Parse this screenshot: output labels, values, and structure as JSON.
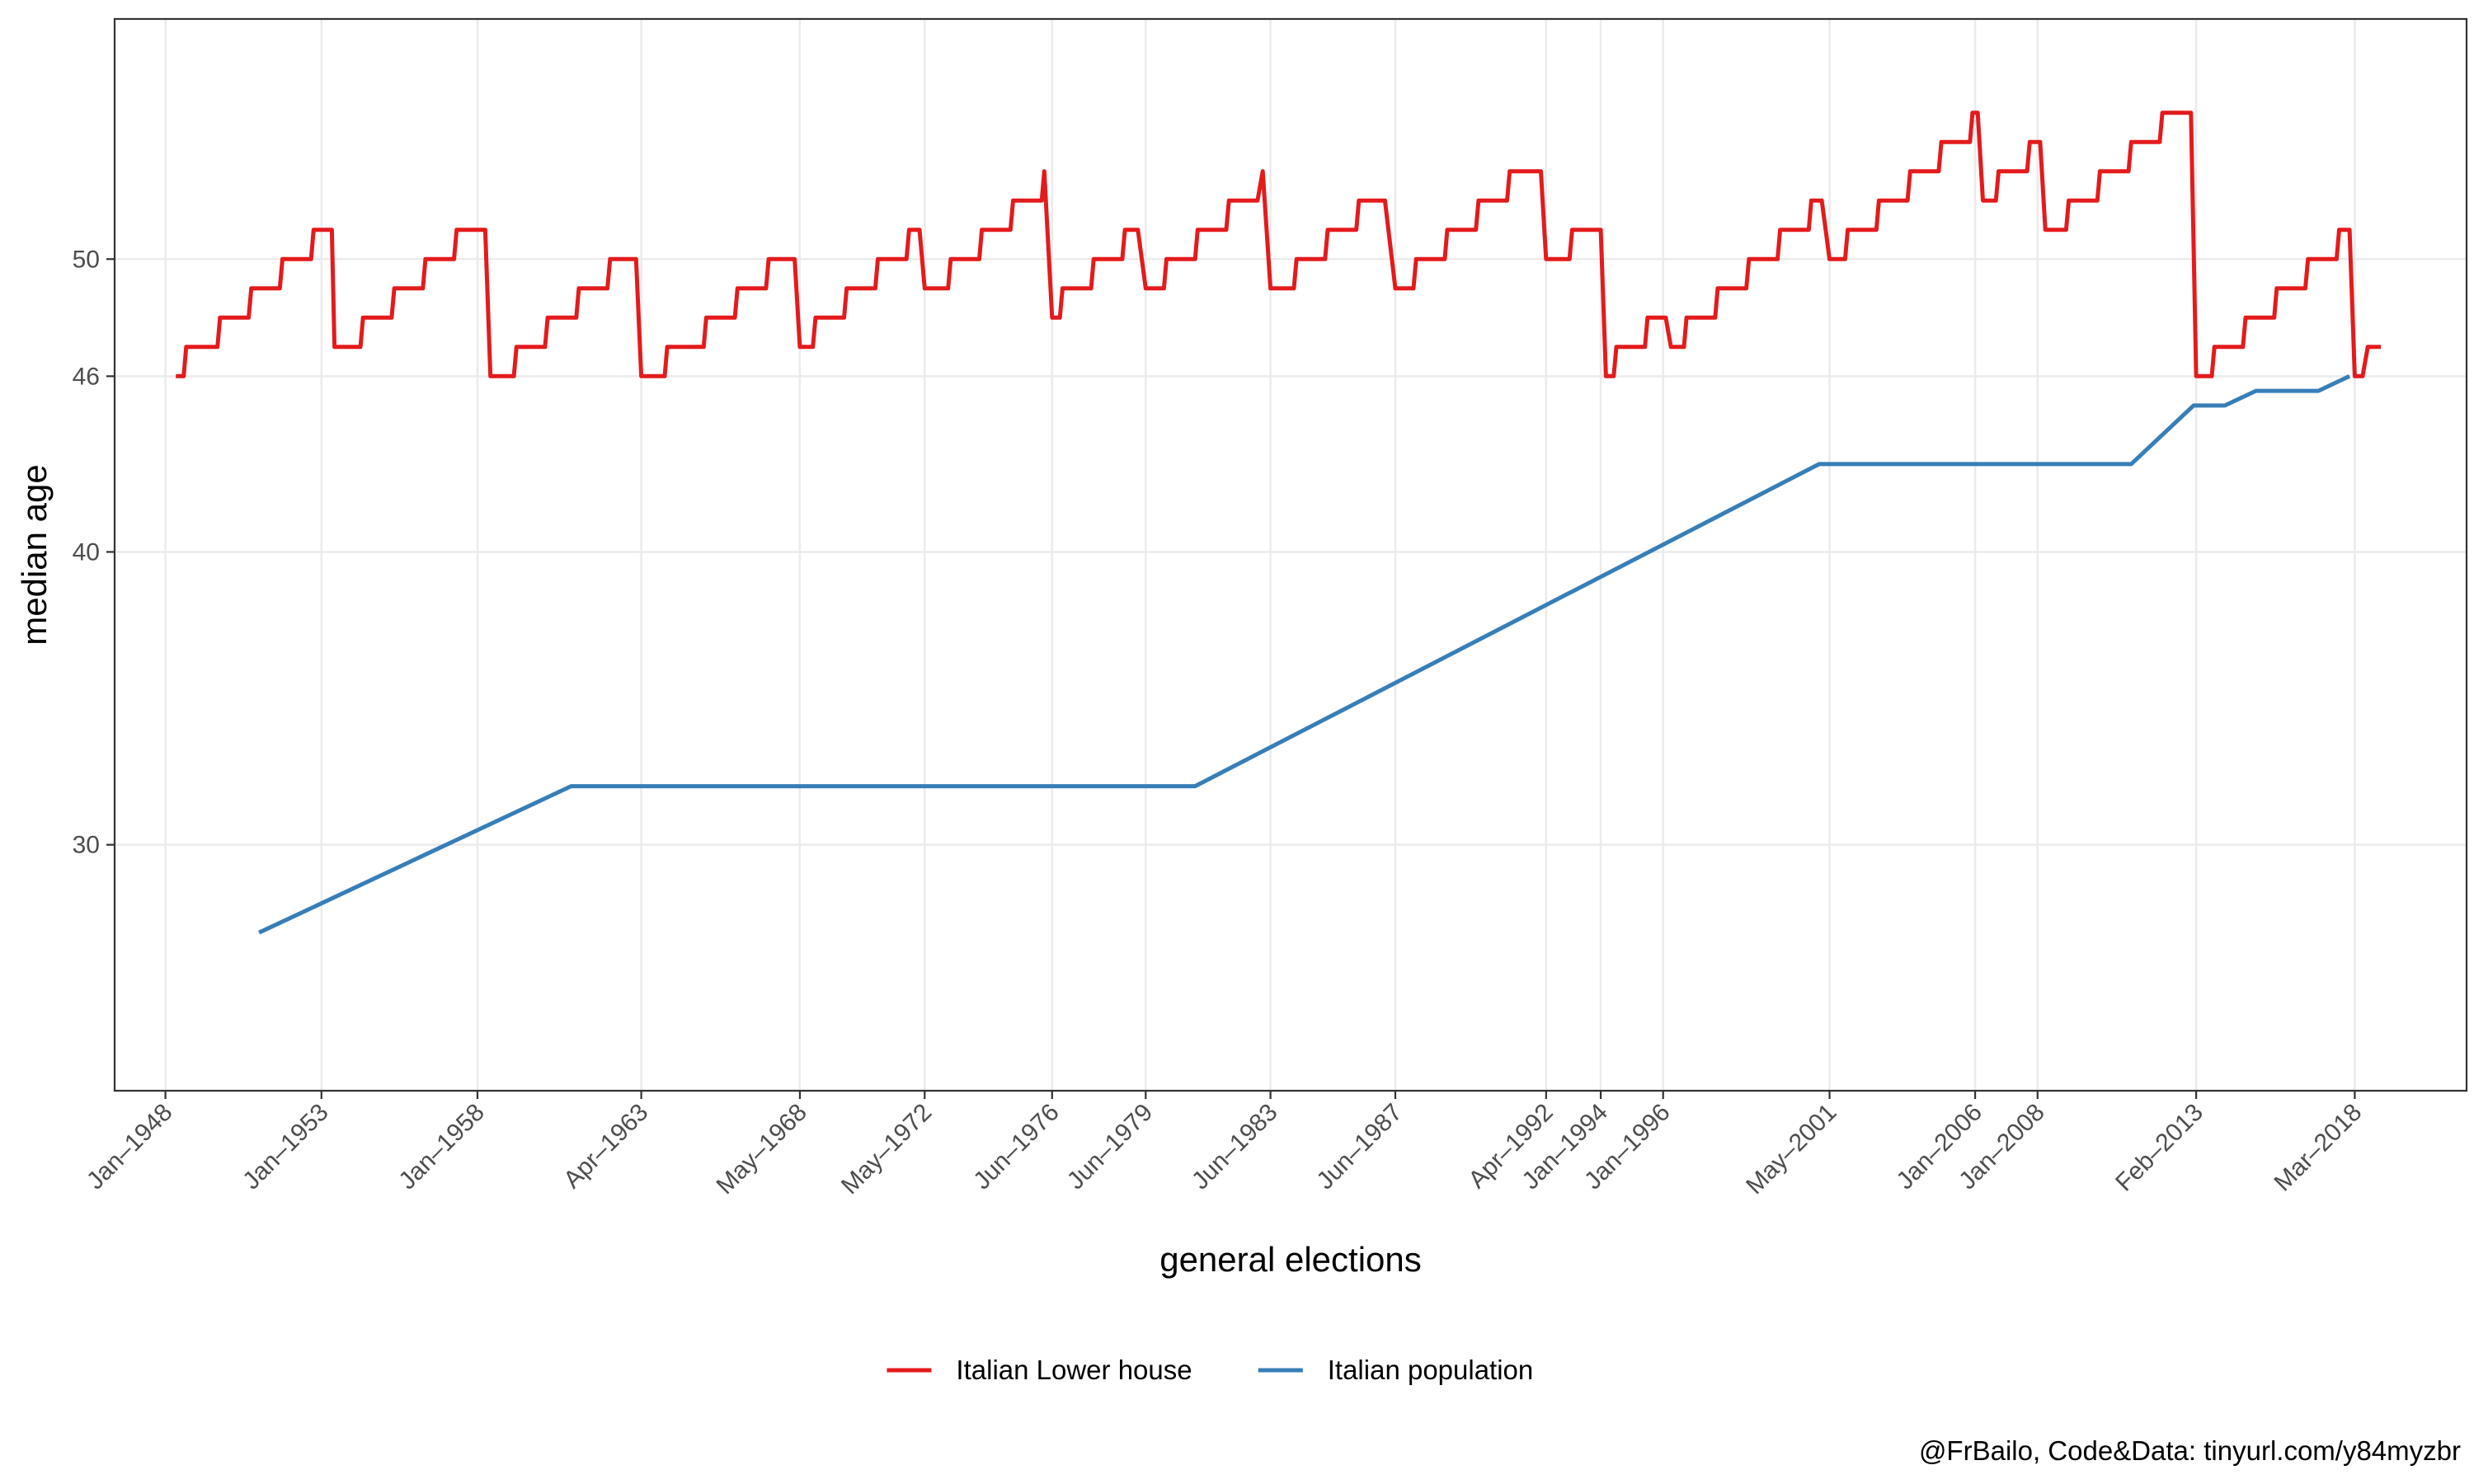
{
  "chart_data": {
    "type": "line",
    "xlabel": "general elections",
    "ylabel": "median age",
    "caption": "@FrBailo, Code&Data: tinyurl.com/y84myzbr",
    "legend_position": "bottom",
    "grid": true,
    "x_scale": "date",
    "xlim": [
      "1946-05-15",
      "2021-10-01"
    ],
    "ylim": [
      21.6,
      58.2
    ],
    "y_ticks": [
      30,
      40,
      46,
      50
    ],
    "x_ticks": [
      {
        "date": "1948-01-01",
        "label": "Jan–1948"
      },
      {
        "date": "1953-01-01",
        "label": "Jan–1953"
      },
      {
        "date": "1958-01-01",
        "label": "Jan–1958"
      },
      {
        "date": "1963-04-01",
        "label": "Apr–1963"
      },
      {
        "date": "1968-05-01",
        "label": "May–1968"
      },
      {
        "date": "1972-05-01",
        "label": "May–1972"
      },
      {
        "date": "1976-06-01",
        "label": "Jun–1976"
      },
      {
        "date": "1979-06-01",
        "label": "Jun–1979"
      },
      {
        "date": "1983-06-01",
        "label": "Jun–1983"
      },
      {
        "date": "1987-06-01",
        "label": "Jun–1987"
      },
      {
        "date": "1992-04-01",
        "label": "Apr–1992"
      },
      {
        "date": "1994-01-01",
        "label": "Jan–1994"
      },
      {
        "date": "1996-01-01",
        "label": "Jan–1996"
      },
      {
        "date": "2001-05-01",
        "label": "May–2001"
      },
      {
        "date": "2006-01-01",
        "label": "Jan–2006"
      },
      {
        "date": "2008-01-01",
        "label": "Jan–2008"
      },
      {
        "date": "2013-02-01",
        "label": "Feb–2013"
      },
      {
        "date": "2018-03-01",
        "label": "Mar–2018"
      }
    ],
    "series": [
      {
        "name": "Italian Lower house",
        "color": "#e41a1c",
        "points": [
          [
            "1948-05-01",
            46
          ],
          [
            "1948-08-01",
            46
          ],
          [
            "1948-09-01",
            47
          ],
          [
            "1949-09-01",
            47
          ],
          [
            "1949-10-01",
            48
          ],
          [
            "1950-09-01",
            48
          ],
          [
            "1950-10-01",
            49
          ],
          [
            "1951-09-01",
            49
          ],
          [
            "1951-10-01",
            50
          ],
          [
            "1952-09-01",
            50
          ],
          [
            "1952-10-01",
            51
          ],
          [
            "1953-05-01",
            51
          ],
          [
            "1953-06-01",
            47
          ],
          [
            "1954-04-01",
            47
          ],
          [
            "1954-05-01",
            48
          ],
          [
            "1955-04-01",
            48
          ],
          [
            "1955-05-01",
            49
          ],
          [
            "1956-04-01",
            49
          ],
          [
            "1956-05-01",
            50
          ],
          [
            "1957-04-01",
            50
          ],
          [
            "1957-05-01",
            51
          ],
          [
            "1958-04-01",
            51
          ],
          [
            "1958-06-01",
            46
          ],
          [
            "1959-03-01",
            46
          ],
          [
            "1959-04-01",
            47
          ],
          [
            "1960-03-01",
            47
          ],
          [
            "1960-04-01",
            48
          ],
          [
            "1961-03-01",
            48
          ],
          [
            "1961-04-01",
            49
          ],
          [
            "1962-03-01",
            49
          ],
          [
            "1962-04-01",
            50
          ],
          [
            "1963-02-01",
            50
          ],
          [
            "1963-04-01",
            46
          ],
          [
            "1964-01-01",
            46
          ],
          [
            "1964-02-01",
            47
          ],
          [
            "1965-04-01",
            47
          ],
          [
            "1965-05-01",
            48
          ],
          [
            "1966-04-01",
            48
          ],
          [
            "1966-05-01",
            49
          ],
          [
            "1967-04-01",
            49
          ],
          [
            "1967-05-01",
            50
          ],
          [
            "1968-03-01",
            50
          ],
          [
            "1968-05-01",
            47
          ],
          [
            "1968-10-01",
            47
          ],
          [
            "1968-11-01",
            48
          ],
          [
            "1969-10-01",
            48
          ],
          [
            "1969-11-01",
            49
          ],
          [
            "1970-10-01",
            49
          ],
          [
            "1970-11-01",
            50
          ],
          [
            "1971-10-01",
            50
          ],
          [
            "1971-11-01",
            51
          ],
          [
            "1972-03-01",
            51
          ],
          [
            "1972-05-01",
            49
          ],
          [
            "1973-02-01",
            49
          ],
          [
            "1973-03-01",
            50
          ],
          [
            "1974-02-01",
            50
          ],
          [
            "1974-03-01",
            51
          ],
          [
            "1975-02-01",
            51
          ],
          [
            "1975-03-01",
            52
          ],
          [
            "1976-02-01",
            52
          ],
          [
            "1976-03-01",
            53
          ],
          [
            "1976-06-01",
            48
          ],
          [
            "1976-09-01",
            48
          ],
          [
            "1976-10-01",
            49
          ],
          [
            "1977-09-01",
            49
          ],
          [
            "1977-10-01",
            50
          ],
          [
            "1978-09-01",
            50
          ],
          [
            "1978-10-01",
            51
          ],
          [
            "1979-03-01",
            51
          ],
          [
            "1979-06-01",
            49
          ],
          [
            "1980-01-01",
            49
          ],
          [
            "1980-02-01",
            50
          ],
          [
            "1981-01-01",
            50
          ],
          [
            "1981-02-01",
            51
          ],
          [
            "1982-01-01",
            51
          ],
          [
            "1982-02-01",
            52
          ],
          [
            "1983-01-01",
            52
          ],
          [
            "1983-03-01",
            53
          ],
          [
            "1983-06-01",
            49
          ],
          [
            "1984-03-01",
            49
          ],
          [
            "1984-04-01",
            50
          ],
          [
            "1985-03-01",
            50
          ],
          [
            "1985-04-01",
            51
          ],
          [
            "1986-03-01",
            51
          ],
          [
            "1986-04-01",
            52
          ],
          [
            "1987-02-01",
            52
          ],
          [
            "1987-06-01",
            49
          ],
          [
            "1988-01-01",
            49
          ],
          [
            "1988-02-01",
            50
          ],
          [
            "1989-01-01",
            50
          ],
          [
            "1989-02-01",
            51
          ],
          [
            "1990-01-01",
            51
          ],
          [
            "1990-02-01",
            52
          ],
          [
            "1991-01-01",
            52
          ],
          [
            "1991-02-01",
            53
          ],
          [
            "1992-02-01",
            53
          ],
          [
            "1992-04-01",
            50
          ],
          [
            "1993-01-01",
            50
          ],
          [
            "1993-02-01",
            51
          ],
          [
            "1994-01-01",
            51
          ],
          [
            "1994-03-01",
            46
          ],
          [
            "1994-06-01",
            46
          ],
          [
            "1994-07-01",
            47
          ],
          [
            "1995-06-01",
            47
          ],
          [
            "1995-07-01",
            48
          ],
          [
            "1996-02-01",
            48
          ],
          [
            "1996-04-01",
            47
          ],
          [
            "1996-09-01",
            47
          ],
          [
            "1996-10-01",
            48
          ],
          [
            "1997-09-01",
            48
          ],
          [
            "1997-10-01",
            49
          ],
          [
            "1998-09-01",
            49
          ],
          [
            "1998-10-01",
            50
          ],
          [
            "1999-09-01",
            50
          ],
          [
            "1999-10-01",
            51
          ],
          [
            "2000-09-01",
            51
          ],
          [
            "2000-10-01",
            52
          ],
          [
            "2001-02-01",
            52
          ],
          [
            "2001-05-01",
            50
          ],
          [
            "2001-11-01",
            50
          ],
          [
            "2001-12-01",
            51
          ],
          [
            "2002-11-01",
            51
          ],
          [
            "2002-12-01",
            52
          ],
          [
            "2003-11-01",
            52
          ],
          [
            "2003-12-01",
            53
          ],
          [
            "2004-11-01",
            53
          ],
          [
            "2004-12-01",
            54
          ],
          [
            "2005-11-01",
            54
          ],
          [
            "2005-12-01",
            55
          ],
          [
            "2006-02-01",
            55
          ],
          [
            "2006-04-01",
            52
          ],
          [
            "2006-09-01",
            52
          ],
          [
            "2006-10-01",
            53
          ],
          [
            "2007-09-01",
            53
          ],
          [
            "2007-10-01",
            54
          ],
          [
            "2008-02-01",
            54
          ],
          [
            "2008-04-01",
            51
          ],
          [
            "2008-12-01",
            51
          ],
          [
            "2009-01-01",
            52
          ],
          [
            "2009-12-01",
            52
          ],
          [
            "2010-01-01",
            53
          ],
          [
            "2010-12-01",
            53
          ],
          [
            "2011-01-01",
            54
          ],
          [
            "2011-12-01",
            54
          ],
          [
            "2012-01-01",
            55
          ],
          [
            "2012-12-01",
            55
          ],
          [
            "2013-02-01",
            46
          ],
          [
            "2013-08-01",
            46
          ],
          [
            "2013-09-01",
            47
          ],
          [
            "2014-08-01",
            47
          ],
          [
            "2014-09-01",
            48
          ],
          [
            "2015-08-01",
            48
          ],
          [
            "2015-09-01",
            49
          ],
          [
            "2016-08-01",
            49
          ],
          [
            "2016-09-01",
            50
          ],
          [
            "2017-08-01",
            50
          ],
          [
            "2017-09-01",
            51
          ],
          [
            "2018-01-01",
            51
          ],
          [
            "2018-03-01",
            46
          ],
          [
            "2018-06-01",
            46
          ],
          [
            "2018-08-01",
            47
          ],
          [
            "2019-01-01",
            47
          ]
        ]
      },
      {
        "name": "Italian population",
        "color": "#377eb8",
        "points": [
          [
            "1951-01-01",
            27
          ],
          [
            "1961-01-01",
            32
          ],
          [
            "1981-01-01",
            32
          ],
          [
            "2001-01-01",
            43
          ],
          [
            "2011-01-01",
            43
          ],
          [
            "2013-01-01",
            45
          ],
          [
            "2014-01-01",
            45
          ],
          [
            "2015-01-01",
            45.5
          ],
          [
            "2017-01-01",
            45.5
          ],
          [
            "2018-01-01",
            46
          ]
        ]
      }
    ]
  }
}
